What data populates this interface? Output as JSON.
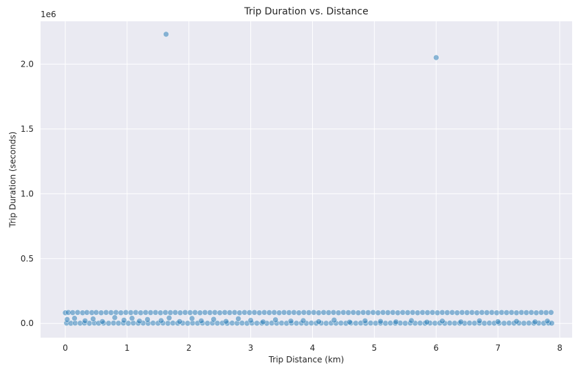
{
  "chart_data": {
    "type": "scatter",
    "title": "Trip Duration vs. Distance",
    "xlabel": "Trip Distance (km)",
    "ylabel": "Trip Duration (seconds)",
    "y_offset_label": "1e6",
    "xlim": [
      -0.4,
      8.2
    ],
    "ylim": [
      -110000,
      2330000
    ],
    "x_ticks": [
      0,
      1,
      2,
      3,
      4,
      5,
      6,
      7,
      8
    ],
    "x_tick_labels": [
      "0",
      "1",
      "2",
      "3",
      "4",
      "5",
      "6",
      "7",
      "8"
    ],
    "y_ticks": [
      0,
      500000,
      1000000,
      1500000,
      2000000
    ],
    "y_tick_labels": [
      "0.0",
      "0.5",
      "1.0",
      "1.5",
      "2.0"
    ],
    "grid": true,
    "point_color": "#1f77b4",
    "background": "#eaeaf2",
    "series": [
      {
        "points": [
          [
            1.63,
            2230000
          ],
          [
            6.0,
            2050000
          ],
          [
            0.0,
            82000
          ],
          [
            0.05,
            84000
          ],
          [
            0.12,
            83000
          ],
          [
            0.2,
            84000
          ],
          [
            0.28,
            82000
          ],
          [
            0.35,
            84000
          ],
          [
            0.43,
            83000
          ],
          [
            0.5,
            84000
          ],
          [
            0.58,
            82000
          ],
          [
            0.66,
            84000
          ],
          [
            0.74,
            83000
          ],
          [
            0.82,
            84000
          ],
          [
            0.9,
            82000
          ],
          [
            0.98,
            84000
          ],
          [
            1.06,
            83000
          ],
          [
            1.14,
            84000
          ],
          [
            1.22,
            82000
          ],
          [
            1.3,
            84000
          ],
          [
            1.38,
            83000
          ],
          [
            1.46,
            84000
          ],
          [
            1.54,
            82000
          ],
          [
            1.62,
            84000
          ],
          [
            1.7,
            83000
          ],
          [
            1.78,
            84000
          ],
          [
            1.86,
            82000
          ],
          [
            1.94,
            84000
          ],
          [
            2.02,
            83000
          ],
          [
            2.1,
            84000
          ],
          [
            2.18,
            82000
          ],
          [
            2.26,
            84000
          ],
          [
            2.34,
            83000
          ],
          [
            2.42,
            84000
          ],
          [
            2.5,
            82000
          ],
          [
            2.58,
            84000
          ],
          [
            2.66,
            83000
          ],
          [
            2.74,
            84000
          ],
          [
            2.82,
            82000
          ],
          [
            2.9,
            84000
          ],
          [
            2.98,
            83000
          ],
          [
            3.06,
            84000
          ],
          [
            3.14,
            82000
          ],
          [
            3.22,
            84000
          ],
          [
            3.3,
            83000
          ],
          [
            3.38,
            84000
          ],
          [
            3.46,
            82000
          ],
          [
            3.54,
            84000
          ],
          [
            3.62,
            83000
          ],
          [
            3.7,
            84000
          ],
          [
            3.78,
            82000
          ],
          [
            3.86,
            84000
          ],
          [
            3.94,
            83000
          ],
          [
            4.02,
            84000
          ],
          [
            4.1,
            82000
          ],
          [
            4.18,
            84000
          ],
          [
            4.26,
            83000
          ],
          [
            4.34,
            84000
          ],
          [
            4.42,
            82000
          ],
          [
            4.5,
            84000
          ],
          [
            4.58,
            83000
          ],
          [
            4.66,
            84000
          ],
          [
            4.74,
            82000
          ],
          [
            4.82,
            84000
          ],
          [
            4.9,
            83000
          ],
          [
            4.98,
            84000
          ],
          [
            5.06,
            82000
          ],
          [
            5.14,
            84000
          ],
          [
            5.22,
            83000
          ],
          [
            5.3,
            84000
          ],
          [
            5.38,
            82000
          ],
          [
            5.46,
            84000
          ],
          [
            5.54,
            83000
          ],
          [
            5.62,
            84000
          ],
          [
            5.7,
            82000
          ],
          [
            5.78,
            84000
          ],
          [
            5.86,
            83000
          ],
          [
            5.94,
            84000
          ],
          [
            6.02,
            82000
          ],
          [
            6.1,
            84000
          ],
          [
            6.18,
            83000
          ],
          [
            6.26,
            84000
          ],
          [
            6.34,
            82000
          ],
          [
            6.42,
            84000
          ],
          [
            6.5,
            83000
          ],
          [
            6.58,
            84000
          ],
          [
            6.66,
            82000
          ],
          [
            6.74,
            84000
          ],
          [
            6.82,
            83000
          ],
          [
            6.9,
            84000
          ],
          [
            6.98,
            82000
          ],
          [
            7.06,
            84000
          ],
          [
            7.14,
            83000
          ],
          [
            7.22,
            84000
          ],
          [
            7.3,
            82000
          ],
          [
            7.38,
            84000
          ],
          [
            7.46,
            83000
          ],
          [
            7.54,
            84000
          ],
          [
            7.62,
            82000
          ],
          [
            7.7,
            84000
          ],
          [
            7.78,
            83000
          ],
          [
            7.86,
            84000
          ],
          [
            0.02,
            2000
          ],
          [
            0.09,
            1000
          ],
          [
            0.16,
            3000
          ],
          [
            0.24,
            1500
          ],
          [
            0.31,
            2500
          ],
          [
            0.39,
            1000
          ],
          [
            0.47,
            3000
          ],
          [
            0.54,
            1500
          ],
          [
            0.62,
            2000
          ],
          [
            0.7,
            1000
          ],
          [
            0.78,
            3000
          ],
          [
            0.86,
            1500
          ],
          [
            0.94,
            2500
          ],
          [
            1.02,
            1000
          ],
          [
            1.1,
            3000
          ],
          [
            1.18,
            1500
          ],
          [
            1.26,
            2000
          ],
          [
            1.34,
            1000
          ],
          [
            1.42,
            3000
          ],
          [
            1.5,
            1500
          ],
          [
            1.58,
            2500
          ],
          [
            1.66,
            1000
          ],
          [
            1.74,
            3000
          ],
          [
            1.82,
            1500
          ],
          [
            1.9,
            2000
          ],
          [
            1.98,
            1000
          ],
          [
            2.06,
            3000
          ],
          [
            2.14,
            1500
          ],
          [
            2.22,
            2500
          ],
          [
            2.3,
            1000
          ],
          [
            2.38,
            3000
          ],
          [
            2.46,
            1500
          ],
          [
            2.54,
            2000
          ],
          [
            2.62,
            1000
          ],
          [
            2.7,
            3000
          ],
          [
            2.78,
            1500
          ],
          [
            2.86,
            2500
          ],
          [
            2.94,
            1000
          ],
          [
            3.02,
            3000
          ],
          [
            3.1,
            1500
          ],
          [
            3.18,
            2000
          ],
          [
            3.26,
            1000
          ],
          [
            3.34,
            3000
          ],
          [
            3.42,
            1500
          ],
          [
            3.5,
            2500
          ],
          [
            3.58,
            1000
          ],
          [
            3.66,
            3000
          ],
          [
            3.74,
            1500
          ],
          [
            3.82,
            2000
          ],
          [
            3.9,
            1000
          ],
          [
            3.98,
            3000
          ],
          [
            4.06,
            1500
          ],
          [
            4.14,
            2500
          ],
          [
            4.22,
            1000
          ],
          [
            4.3,
            3000
          ],
          [
            4.38,
            1500
          ],
          [
            4.46,
            2000
          ],
          [
            4.54,
            1000
          ],
          [
            4.62,
            3000
          ],
          [
            4.7,
            1500
          ],
          [
            4.78,
            2500
          ],
          [
            4.86,
            1000
          ],
          [
            4.94,
            3000
          ],
          [
            5.02,
            1500
          ],
          [
            5.1,
            2000
          ],
          [
            5.18,
            1000
          ],
          [
            5.26,
            3000
          ],
          [
            5.34,
            1500
          ],
          [
            5.42,
            2500
          ],
          [
            5.5,
            1000
          ],
          [
            5.58,
            3000
          ],
          [
            5.66,
            1500
          ],
          [
            5.74,
            2000
          ],
          [
            5.82,
            1000
          ],
          [
            5.9,
            3000
          ],
          [
            5.98,
            1500
          ],
          [
            6.06,
            2500
          ],
          [
            6.14,
            1000
          ],
          [
            6.22,
            3000
          ],
          [
            6.3,
            1500
          ],
          [
            6.38,
            2000
          ],
          [
            6.46,
            1000
          ],
          [
            6.54,
            3000
          ],
          [
            6.62,
            1500
          ],
          [
            6.7,
            2500
          ],
          [
            6.78,
            1000
          ],
          [
            6.86,
            3000
          ],
          [
            6.94,
            1500
          ],
          [
            7.02,
            2000
          ],
          [
            7.1,
            1000
          ],
          [
            7.18,
            3000
          ],
          [
            7.26,
            1500
          ],
          [
            7.34,
            2500
          ],
          [
            7.42,
            1000
          ],
          [
            7.5,
            3000
          ],
          [
            7.58,
            1500
          ],
          [
            7.66,
            2000
          ],
          [
            7.74,
            1000
          ],
          [
            7.82,
            3000
          ],
          [
            7.87,
            1500
          ],
          [
            0.03,
            30000
          ],
          [
            0.15,
            40000
          ],
          [
            0.32,
            20000
          ],
          [
            0.45,
            35000
          ],
          [
            0.6,
            15000
          ],
          [
            0.8,
            45000
          ],
          [
            0.95,
            25000
          ],
          [
            1.08,
            40000
          ],
          [
            1.2,
            18000
          ],
          [
            1.33,
            30000
          ],
          [
            1.55,
            22000
          ],
          [
            1.68,
            42000
          ],
          [
            1.85,
            15000
          ],
          [
            2.05,
            38000
          ],
          [
            2.2,
            20000
          ],
          [
            2.4,
            32000
          ],
          [
            2.6,
            16000
          ],
          [
            2.8,
            36000
          ],
          [
            3.0,
            24000
          ],
          [
            3.2,
            12000
          ],
          [
            3.4,
            28000
          ],
          [
            3.65,
            18000
          ],
          [
            3.85,
            22000
          ],
          [
            4.1,
            14000
          ],
          [
            4.35,
            26000
          ],
          [
            4.6,
            10000
          ],
          [
            4.85,
            20000
          ],
          [
            5.1,
            16000
          ],
          [
            5.35,
            12000
          ],
          [
            5.6,
            22000
          ],
          [
            5.85,
            10000
          ],
          [
            6.1,
            18000
          ],
          [
            6.4,
            12000
          ],
          [
            6.7,
            20000
          ],
          [
            7.0,
            14000
          ],
          [
            7.3,
            16000
          ],
          [
            7.6,
            12000
          ],
          [
            7.8,
            18000
          ]
        ]
      }
    ]
  }
}
